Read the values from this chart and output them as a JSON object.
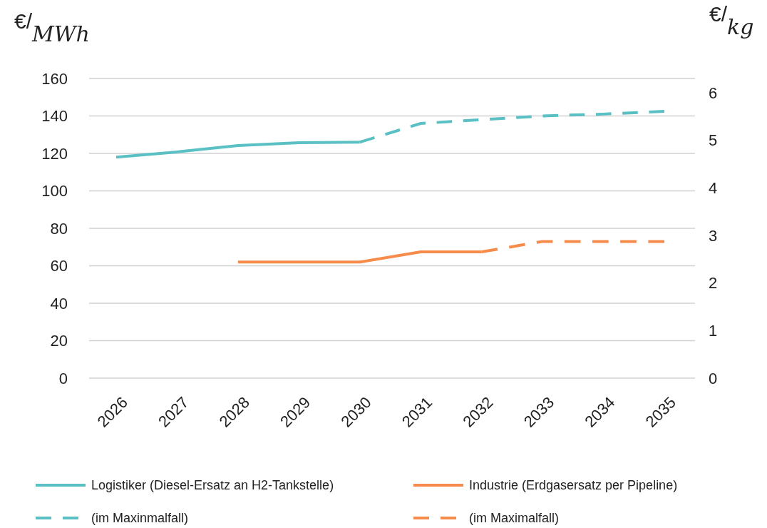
{
  "chart_data": {
    "type": "line",
    "ylabel": "€/$_{MWh}$",
    "y2label": "€/$_{kg}$",
    "categories": [
      "2026",
      "2027",
      "2028",
      "2029",
      "2030",
      "2031",
      "2032",
      "2033",
      "2034",
      "2035"
    ],
    "series": [
      {
        "name": "Logistiker (Diesel-Ersatz an H2-Tankstelle)",
        "color": "#5bc0c4",
        "line_style": "solid",
        "values": [
          118,
          120.8,
          124.2,
          125.7,
          126,
          null,
          null,
          null,
          null,
          null
        ]
      },
      {
        "name": "Industrie (Erdgasersatz per Pipeline)",
        "color": "#f58c4c",
        "line_style": "solid",
        "values": [
          null,
          null,
          62,
          62,
          62,
          67.4,
          67.4,
          null,
          null,
          null
        ]
      },
      {
        "name": "(im Maxinmalfall)",
        "color": "#5bc0c4",
        "line_style": "dashed",
        "values": [
          null,
          null,
          null,
          null,
          126,
          136,
          138,
          140,
          141,
          142.5
        ]
      },
      {
        "name": "(im Maximalfall)",
        "color": "#f58c4c",
        "line_style": "dashed",
        "values": [
          null,
          null,
          null,
          null,
          null,
          null,
          67.4,
          73,
          73,
          73
        ]
      }
    ],
    "ylim": [
      0,
      160
    ],
    "yticks": [
      0,
      20,
      40,
      60,
      80,
      100,
      120,
      140,
      160
    ],
    "y2lim": [
      0,
      6.3
    ],
    "y2ticks": [
      0,
      1,
      2,
      3,
      4,
      5,
      6
    ],
    "grid": "y",
    "legend": "bottom",
    "marker": "none"
  }
}
